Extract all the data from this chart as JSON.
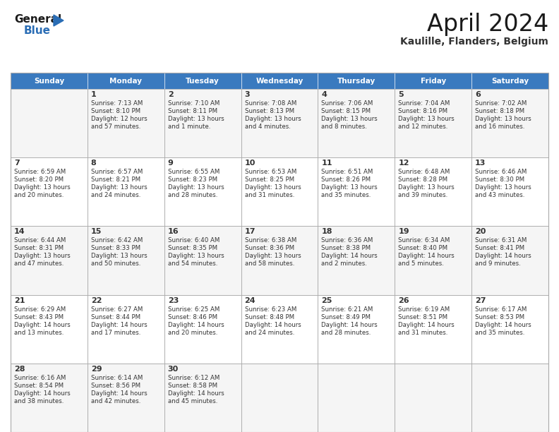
{
  "title": "April 2024",
  "subtitle": "Kaulille, Flanders, Belgium",
  "header_color": "#3a7abf",
  "header_text_color": "#ffffff",
  "days_of_week": [
    "Sunday",
    "Monday",
    "Tuesday",
    "Wednesday",
    "Thursday",
    "Friday",
    "Saturday"
  ],
  "bg_color": "#ffffff",
  "cell_bg_row0": "#f5f5f5",
  "cell_bg_row1": "#ffffff",
  "cell_bg_row2": "#f5f5f5",
  "cell_bg_row3": "#ffffff",
  "cell_bg_row4": "#f5f5f5",
  "grid_color": "#aaaaaa",
  "text_color": "#333333",
  "logo_general_color": "#1a1a1a",
  "logo_blue_color": "#2a6db5",
  "logo_triangle_color": "#2a6db5",
  "title_color": "#1a1a1a",
  "subtitle_color": "#333333",
  "calendar_data": [
    [
      {
        "day": "",
        "sunrise": "",
        "sunset": "",
        "daylight": ""
      },
      {
        "day": "1",
        "sunrise": "7:13 AM",
        "sunset": "8:10 PM",
        "daylight": "12 hours\nand 57 minutes."
      },
      {
        "day": "2",
        "sunrise": "7:10 AM",
        "sunset": "8:11 PM",
        "daylight": "13 hours\nand 1 minute."
      },
      {
        "day": "3",
        "sunrise": "7:08 AM",
        "sunset": "8:13 PM",
        "daylight": "13 hours\nand 4 minutes."
      },
      {
        "day": "4",
        "sunrise": "7:06 AM",
        "sunset": "8:15 PM",
        "daylight": "13 hours\nand 8 minutes."
      },
      {
        "day": "5",
        "sunrise": "7:04 AM",
        "sunset": "8:16 PM",
        "daylight": "13 hours\nand 12 minutes."
      },
      {
        "day": "6",
        "sunrise": "7:02 AM",
        "sunset": "8:18 PM",
        "daylight": "13 hours\nand 16 minutes."
      }
    ],
    [
      {
        "day": "7",
        "sunrise": "6:59 AM",
        "sunset": "8:20 PM",
        "daylight": "13 hours\nand 20 minutes."
      },
      {
        "day": "8",
        "sunrise": "6:57 AM",
        "sunset": "8:21 PM",
        "daylight": "13 hours\nand 24 minutes."
      },
      {
        "day": "9",
        "sunrise": "6:55 AM",
        "sunset": "8:23 PM",
        "daylight": "13 hours\nand 28 minutes."
      },
      {
        "day": "10",
        "sunrise": "6:53 AM",
        "sunset": "8:25 PM",
        "daylight": "13 hours\nand 31 minutes."
      },
      {
        "day": "11",
        "sunrise": "6:51 AM",
        "sunset": "8:26 PM",
        "daylight": "13 hours\nand 35 minutes."
      },
      {
        "day": "12",
        "sunrise": "6:48 AM",
        "sunset": "8:28 PM",
        "daylight": "13 hours\nand 39 minutes."
      },
      {
        "day": "13",
        "sunrise": "6:46 AM",
        "sunset": "8:30 PM",
        "daylight": "13 hours\nand 43 minutes."
      }
    ],
    [
      {
        "day": "14",
        "sunrise": "6:44 AM",
        "sunset": "8:31 PM",
        "daylight": "13 hours\nand 47 minutes."
      },
      {
        "day": "15",
        "sunrise": "6:42 AM",
        "sunset": "8:33 PM",
        "daylight": "13 hours\nand 50 minutes."
      },
      {
        "day": "16",
        "sunrise": "6:40 AM",
        "sunset": "8:35 PM",
        "daylight": "13 hours\nand 54 minutes."
      },
      {
        "day": "17",
        "sunrise": "6:38 AM",
        "sunset": "8:36 PM",
        "daylight": "13 hours\nand 58 minutes."
      },
      {
        "day": "18",
        "sunrise": "6:36 AM",
        "sunset": "8:38 PM",
        "daylight": "14 hours\nand 2 minutes."
      },
      {
        "day": "19",
        "sunrise": "6:34 AM",
        "sunset": "8:40 PM",
        "daylight": "14 hours\nand 5 minutes."
      },
      {
        "day": "20",
        "sunrise": "6:31 AM",
        "sunset": "8:41 PM",
        "daylight": "14 hours\nand 9 minutes."
      }
    ],
    [
      {
        "day": "21",
        "sunrise": "6:29 AM",
        "sunset": "8:43 PM",
        "daylight": "14 hours\nand 13 minutes."
      },
      {
        "day": "22",
        "sunrise": "6:27 AM",
        "sunset": "8:44 PM",
        "daylight": "14 hours\nand 17 minutes."
      },
      {
        "day": "23",
        "sunrise": "6:25 AM",
        "sunset": "8:46 PM",
        "daylight": "14 hours\nand 20 minutes."
      },
      {
        "day": "24",
        "sunrise": "6:23 AM",
        "sunset": "8:48 PM",
        "daylight": "14 hours\nand 24 minutes."
      },
      {
        "day": "25",
        "sunrise": "6:21 AM",
        "sunset": "8:49 PM",
        "daylight": "14 hours\nand 28 minutes."
      },
      {
        "day": "26",
        "sunrise": "6:19 AM",
        "sunset": "8:51 PM",
        "daylight": "14 hours\nand 31 minutes."
      },
      {
        "day": "27",
        "sunrise": "6:17 AM",
        "sunset": "8:53 PM",
        "daylight": "14 hours\nand 35 minutes."
      }
    ],
    [
      {
        "day": "28",
        "sunrise": "6:16 AM",
        "sunset": "8:54 PM",
        "daylight": "14 hours\nand 38 minutes."
      },
      {
        "day": "29",
        "sunrise": "6:14 AM",
        "sunset": "8:56 PM",
        "daylight": "14 hours\nand 42 minutes."
      },
      {
        "day": "30",
        "sunrise": "6:12 AM",
        "sunset": "8:58 PM",
        "daylight": "14 hours\nand 45 minutes."
      },
      {
        "day": "",
        "sunrise": "",
        "sunset": "",
        "daylight": ""
      },
      {
        "day": "",
        "sunrise": "",
        "sunset": "",
        "daylight": ""
      },
      {
        "day": "",
        "sunrise": "",
        "sunset": "",
        "daylight": ""
      },
      {
        "day": "",
        "sunrise": "",
        "sunset": "",
        "daylight": ""
      }
    ]
  ],
  "row_bg_colors": [
    "#f5f5f5",
    "#ffffff",
    "#f5f5f5",
    "#ffffff",
    "#f5f5f5"
  ]
}
